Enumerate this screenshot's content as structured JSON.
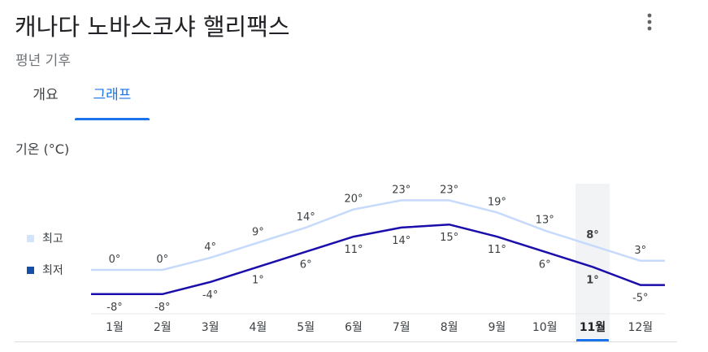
{
  "header": {
    "title": "캐나다 노바스코샤 핼리팩스",
    "subtitle": "평년 기후"
  },
  "tabs": [
    {
      "label": "개요",
      "active": false
    },
    {
      "label": "그래프",
      "active": true
    }
  ],
  "icons": {
    "more": "more-vert-icon"
  },
  "colors": {
    "accent": "#1a73e8",
    "high_line": "#c6dafc",
    "low_line": "#1a0dab",
    "highlight_band": "#f1f3f4",
    "low_swatch": "#174ea6",
    "high_swatch": "#d2e3fc"
  },
  "chart_data": {
    "type": "line",
    "title": "기온 (°C)",
    "categories": [
      "1월",
      "2월",
      "3월",
      "4월",
      "5월",
      "6월",
      "7월",
      "8월",
      "9월",
      "10월",
      "11월",
      "12월"
    ],
    "series": [
      {
        "name": "최고",
        "values": [
          0,
          0,
          4,
          9,
          14,
          20,
          23,
          23,
          19,
          13,
          8,
          3
        ],
        "labels": [
          "0°",
          "0°",
          "4°",
          "9°",
          "14°",
          "20°",
          "23°",
          "23°",
          "19°",
          "13°",
          "8°",
          "3°"
        ]
      },
      {
        "name": "최저",
        "values": [
          -8,
          -8,
          -4,
          1,
          6,
          11,
          14,
          15,
          11,
          6,
          1,
          -5
        ],
        "labels": [
          "-8°",
          "-8°",
          "-4°",
          "1°",
          "6°",
          "11°",
          "14°",
          "15°",
          "11°",
          "6°",
          "1°",
          "-5°"
        ]
      }
    ],
    "highlighted_index": 10,
    "legend_position": "left",
    "grid": false
  }
}
